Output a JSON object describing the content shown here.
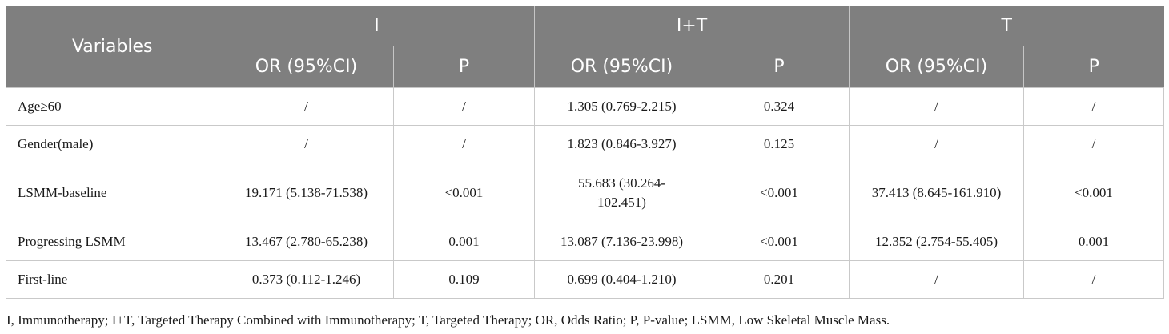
{
  "header": {
    "variables": "Variables",
    "groups": [
      "I",
      "I+T",
      "T"
    ],
    "sub": [
      "OR (95%CI)",
      "P",
      "OR (95%CI)",
      "P",
      "OR (95%CI)",
      "P"
    ]
  },
  "rows": [
    {
      "label": "Age≥60",
      "cells": [
        "/",
        "/",
        "1.305 (0.769-2.215)",
        "0.324",
        "/",
        "/"
      ]
    },
    {
      "label": "Gender(male)",
      "cells": [
        "/",
        "/",
        "1.823 (0.846-3.927)",
        "0.125",
        "/",
        "/"
      ]
    },
    {
      "label": "LSMM-baseline",
      "cells": [
        "19.171 (5.138-71.538)",
        "<0.001",
        "55.683 (30.264-102.451)",
        "<0.001",
        "37.413 (8.645-161.910)",
        "<0.001"
      ]
    },
    {
      "label": "Progressing LSMM",
      "cells": [
        "13.467 (2.780-65.238)",
        "0.001",
        "13.087 (7.136-23.998)",
        "<0.001",
        "12.352 (2.754-55.405)",
        "0.001"
      ]
    },
    {
      "label": "First-line",
      "cells": [
        "0.373 (0.112-1.246)",
        "0.109",
        "0.699 (0.404-1.210)",
        "0.201",
        "/",
        "/"
      ]
    }
  ],
  "footnote": "I, Immunotherapy; I+T, Targeted Therapy Combined with Immunotherapy; T, Targeted Therapy; OR, Odds Ratio; P, P-value; LSMM, Low Skeletal Muscle Mass."
}
